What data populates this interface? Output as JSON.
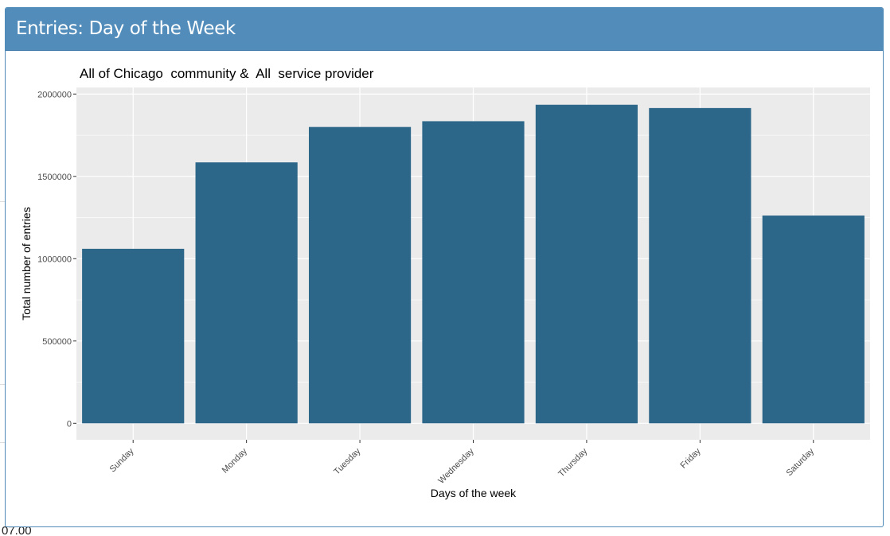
{
  "panel": {
    "title": "Entries: Day of the Week"
  },
  "background": {
    "bottom_fragment": "07.00"
  },
  "colors": {
    "header": "#528cba",
    "bar": "#2c6688",
    "plot_bg": "#ebebeb",
    "grid": "#ffffff"
  },
  "chart_data": {
    "type": "bar",
    "title": "All of Chicago  community &  All  service provider",
    "xlabel": "Days of the week",
    "ylabel": "Total number of entries",
    "categories": [
      "Sunday",
      "Monday",
      "Tuesday",
      "Wednesday",
      "Thursday",
      "Friday",
      "Saturday"
    ],
    "values": [
      1060000,
      1585000,
      1800000,
      1835000,
      1935000,
      1915000,
      1262000
    ],
    "ylim": [
      -100000,
      2040000
    ],
    "yticks": [
      0,
      500000,
      1000000,
      1500000,
      2000000
    ],
    "ytick_labels": [
      "0",
      "500000",
      "1000000",
      "1500000",
      "2000000"
    ],
    "grid": true,
    "legend": "none"
  }
}
